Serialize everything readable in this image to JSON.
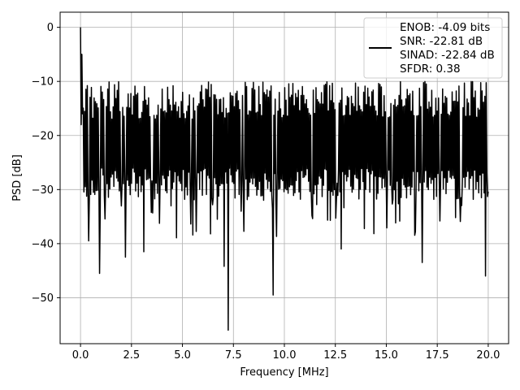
{
  "chart_data": {
    "type": "line",
    "xlabel": "Frequency [MHz]",
    "ylabel": "PSD [dB]",
    "xlim": [
      -1.0,
      21.0
    ],
    "ylim": [
      -58.5,
      2.8
    ],
    "x_ticks": [
      0.0,
      2.5,
      5.0,
      7.5,
      10.0,
      12.5,
      15.0,
      17.5,
      20.0
    ],
    "x_tick_labels": [
      "0.0",
      "2.5",
      "5.0",
      "7.5",
      "10.0",
      "12.5",
      "15.0",
      "17.5",
      "20.0"
    ],
    "y_ticks": [
      0,
      -10,
      -20,
      -30,
      -40,
      -50
    ],
    "y_tick_labels": [
      "0",
      "−10",
      "−20",
      "−30",
      "−40",
      "−50"
    ],
    "grid": true,
    "legend_position": "top-right",
    "legend_lines": [
      "ENOB: -4.09 bits",
      "SNR: -22.81 dB",
      "SINAD: -22.84 dB",
      "SFDR: 0.38"
    ],
    "line_color": "#000000",
    "series": [
      {
        "x_start": 0.0,
        "x_end": 20.0,
        "points": 600,
        "typical_range_db": [
          -29,
          -9
        ],
        "peak": {
          "x": 0.0,
          "y": 0.0
        },
        "notable_dips": [
          {
            "x": 0.4,
            "y": -39.5
          },
          {
            "x": 0.95,
            "y": -45.5
          },
          {
            "x": 2.2,
            "y": -42.5
          },
          {
            "x": 3.1,
            "y": -41.5
          },
          {
            "x": 7.05,
            "y": -44.2
          },
          {
            "x": 7.25,
            "y": -56.0
          },
          {
            "x": 9.45,
            "y": -49.5
          },
          {
            "x": 12.8,
            "y": -41.0
          },
          {
            "x": 16.75,
            "y": -43.5
          },
          {
            "x": 19.85,
            "y": -46.0
          }
        ]
      }
    ]
  }
}
